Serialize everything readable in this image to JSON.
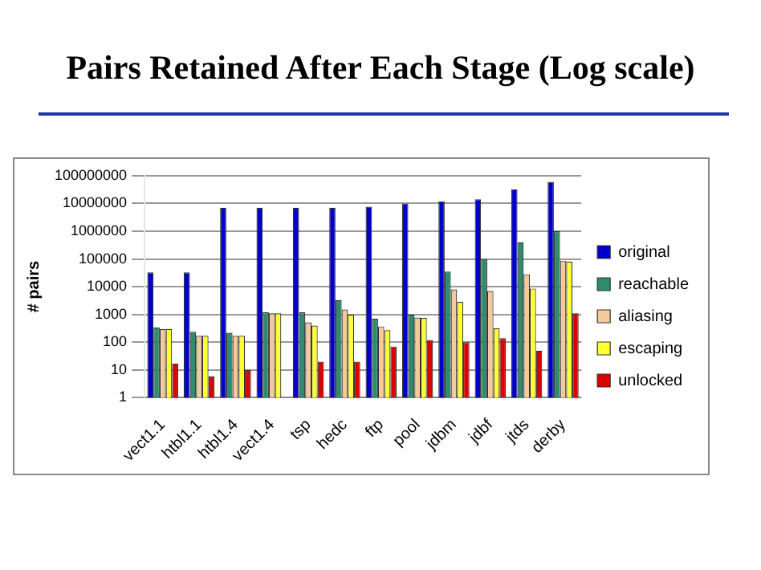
{
  "chart_data": {
    "type": "bar",
    "title": "Pairs Retained After Each Stage (Log scale)",
    "ylabel": "# pairs",
    "categories": [
      "vect1.1",
      "htbl1.1",
      "htbl1.4",
      "vect1.4",
      "tsp",
      "hedc",
      "ftp",
      "pool",
      "jdbm",
      "jdbf",
      "jtds",
      "derby"
    ],
    "series": [
      {
        "name": "original",
        "color": "#0000cc",
        "values": [
          33000,
          33000,
          7000000,
          7000000,
          7000000,
          7000000,
          7600000,
          10000000,
          12000000,
          14000000,
          32000000,
          60000000
        ]
      },
      {
        "name": "reachable",
        "color": "#2e8b6e",
        "values": [
          340,
          240,
          220,
          1200,
          1200,
          3300,
          700,
          1000,
          35000,
          100000,
          400000,
          1000000
        ]
      },
      {
        "name": "aliasing",
        "color": "#f5c99a",
        "values": [
          300,
          170,
          170,
          1100,
          520,
          1500,
          370,
          780,
          8000,
          7000,
          28000,
          87000
        ]
      },
      {
        "name": "escaping",
        "color": "#ffff33",
        "values": [
          300,
          170,
          170,
          1100,
          400,
          1000,
          270,
          750,
          2900,
          320,
          8600,
          80000
        ]
      },
      {
        "name": "unlocked",
        "color": "#dd0000",
        "values": [
          17,
          6,
          10,
          null,
          20,
          20,
          70,
          120,
          100,
          140,
          50,
          1100
        ]
      }
    ],
    "log": "y",
    "ylim": [
      1,
      100000000
    ],
    "yticks": [
      1,
      10,
      100,
      1000,
      10000,
      100000,
      1000000,
      10000000,
      100000000
    ],
    "grid": "y",
    "legend": "right"
  }
}
